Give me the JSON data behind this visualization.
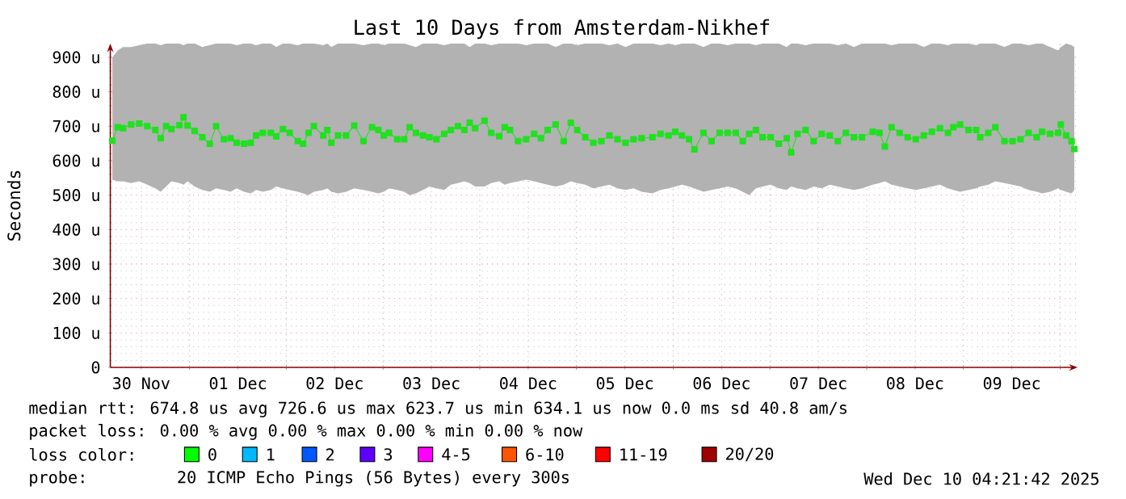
{
  "chart_data": {
    "type": "line",
    "title": "Last 10 Days from Amsterdam-Nikhef",
    "ylabel": "Seconds",
    "xlim": [
      "2025-11-30T04:20",
      "2025-12-10T04:20"
    ],
    "xticks": [
      {
        "value": "2025-11-30T12:00",
        "label": "30 Nov"
      },
      {
        "value": "2025-12-01T00:00",
        "label": null
      },
      {
        "value": "2025-12-01T12:00",
        "label": "01 Dec"
      },
      {
        "value": "2025-12-02T00:00",
        "label": null
      },
      {
        "value": "2025-12-02T12:00",
        "label": "02 Dec"
      },
      {
        "value": "2025-12-03T00:00",
        "label": null
      },
      {
        "value": "2025-12-03T12:00",
        "label": "03 Dec"
      },
      {
        "value": "2025-12-04T00:00",
        "label": null
      },
      {
        "value": "2025-12-04T12:00",
        "label": "04 Dec"
      },
      {
        "value": "2025-12-05T00:00",
        "label": null
      },
      {
        "value": "2025-12-05T12:00",
        "label": "05 Dec"
      },
      {
        "value": "2025-12-06T00:00",
        "label": null
      },
      {
        "value": "2025-12-06T12:00",
        "label": "06 Dec"
      },
      {
        "value": "2025-12-07T00:00",
        "label": null
      },
      {
        "value": "2025-12-07T12:00",
        "label": "07 Dec"
      },
      {
        "value": "2025-12-08T00:00",
        "label": null
      },
      {
        "value": "2025-12-08T12:00",
        "label": "08 Dec"
      },
      {
        "value": "2025-12-09T00:00",
        "label": null
      },
      {
        "value": "2025-12-09T12:00",
        "label": "09 Dec"
      },
      {
        "value": "2025-12-10T00:00",
        "label": null
      }
    ],
    "ylim": [
      0,
      940
    ],
    "yticks": [
      0,
      {
        "value": 100,
        "label": "100 u"
      },
      {
        "value": 200,
        "label": "200 u"
      },
      {
        "value": 300,
        "label": "300 u"
      },
      {
        "value": 400,
        "label": "400 u"
      },
      {
        "value": 500,
        "label": "500 u"
      },
      {
        "value": 600,
        "label": "600 u"
      },
      {
        "value": 700,
        "label": "700 u"
      },
      {
        "value": 800,
        "label": "800 u"
      },
      {
        "value": 900,
        "label": "900 u"
      }
    ],
    "grid": true,
    "marker": "square",
    "line_style": "solid",
    "x": [
      "2025-11-30T04:50",
      "2025-11-30T06:10",
      "2025-11-30T07:30",
      "2025-11-30T09:30",
      "2025-11-30T11:30",
      "2025-11-30T13:30",
      "2025-11-30T15:30",
      "2025-11-30T16:50",
      "2025-11-30T18:10",
      "2025-11-30T19:30",
      "2025-11-30T21:30",
      "2025-11-30T22:30",
      "2025-11-30T23:30",
      "2025-12-01T01:15",
      "2025-12-01T03:10",
      "2025-12-01T05:00",
      "2025-12-01T06:35",
      "2025-12-01T08:30",
      "2025-12-01T10:10",
      "2025-12-01T11:40",
      "2025-12-01T13:30",
      "2025-12-01T15:10",
      "2025-12-01T16:30",
      "2025-12-01T18:10",
      "2025-12-01T20:10",
      "2025-12-01T21:30",
      "2025-12-01T23:10",
      "2025-12-02T00:50",
      "2025-12-02T02:50",
      "2025-12-02T04:10",
      "2025-12-02T05:30",
      "2025-12-02T06:50",
      "2025-12-02T09:10",
      "2025-12-02T10:10",
      "2025-12-02T11:10",
      "2025-12-02T12:50",
      "2025-12-02T14:50",
      "2025-12-02T16:50",
      "2025-12-02T19:10",
      "2025-12-02T21:15",
      "2025-12-02T22:50",
      "2025-12-03T00:10",
      "2025-12-03T01:30",
      "2025-12-03T03:30",
      "2025-12-03T05:15",
      "2025-12-03T06:35",
      "2025-12-03T08:10",
      "2025-12-03T09:55",
      "2025-12-03T11:30",
      "2025-12-03T13:15",
      "2025-12-03T15:10",
      "2025-12-03T16:50",
      "2025-12-03T18:35",
      "2025-12-03T20:10",
      "2025-12-03T21:30",
      "2025-12-03T22:50",
      "2025-12-04T01:10",
      "2025-12-04T02:50",
      "2025-12-04T04:50",
      "2025-12-04T06:10",
      "2025-12-04T07:30",
      "2025-12-04T09:30",
      "2025-12-04T11:30",
      "2025-12-04T13:30",
      "2025-12-04T15:10",
      "2025-12-04T16:50",
      "2025-12-04T18:50",
      "2025-12-04T20:50",
      "2025-12-04T22:35",
      "2025-12-05T00:10",
      "2025-12-05T02:10",
      "2025-12-05T04:10",
      "2025-12-05T06:10",
      "2025-12-05T08:10",
      "2025-12-05T10:10",
      "2025-12-05T12:10",
      "2025-12-05T14:10",
      "2025-12-05T16:10",
      "2025-12-05T18:50",
      "2025-12-05T20:50",
      "2025-12-05T22:50",
      "2025-12-06T00:30",
      "2025-12-06T02:10",
      "2025-12-06T03:55",
      "2025-12-06T05:15",
      "2025-12-06T07:30",
      "2025-12-06T09:30",
      "2025-12-06T11:30",
      "2025-12-06T13:30",
      "2025-12-06T15:30",
      "2025-12-06T17:15",
      "2025-12-06T18:50",
      "2025-12-06T20:30",
      "2025-12-06T22:10",
      "2025-12-07T00:10",
      "2025-12-07T02:10",
      "2025-12-07T04:10",
      "2025-12-07T05:15",
      "2025-12-07T06:50",
      "2025-12-07T08:50",
      "2025-12-07T10:50",
      "2025-12-07T12:50",
      "2025-12-07T14:50",
      "2025-12-07T16:50",
      "2025-12-07T18:50",
      "2025-12-07T20:50",
      "2025-12-07T22:50",
      "2025-12-08T01:30",
      "2025-12-08T03:10",
      "2025-12-08T04:30",
      "2025-12-08T06:10",
      "2025-12-08T08:10",
      "2025-12-08T10:10",
      "2025-12-08T12:10",
      "2025-12-08T14:10",
      "2025-12-08T16:10",
      "2025-12-08T18:10",
      "2025-12-08T20:10",
      "2025-12-08T21:30",
      "2025-12-08T23:10",
      "2025-12-09T01:15",
      "2025-12-09T03:10",
      "2025-12-09T04:10",
      "2025-12-09T06:10",
      "2025-12-09T07:55",
      "2025-12-09T10:10",
      "2025-12-09T12:10",
      "2025-12-09T14:10",
      "2025-12-09T16:10",
      "2025-12-09T18:10",
      "2025-12-09T19:30",
      "2025-12-09T21:30",
      "2025-12-09T23:30",
      "2025-12-10T00:10",
      "2025-12-10T01:30",
      "2025-12-10T02:50",
      "2025-12-10T03:30"
    ],
    "series": [
      {
        "color": "#20e020",
        "values": [
          658,
          697,
          694,
          705,
          708,
          700,
          689,
          665,
          700,
          692,
          703,
          726,
          702,
          686,
          668,
          649,
          700,
          662,
          665,
          652,
          649,
          652,
          673,
          681,
          681,
          670,
          692,
          681,
          657,
          649,
          681,
          700,
          673,
          689,
          652,
          673,
          673,
          702,
          657,
          697,
          689,
          673,
          681,
          662,
          662,
          697,
          681,
          673,
          668,
          662,
          678,
          689,
          700,
          689,
          710,
          694,
          716,
          681,
          671,
          697,
          689,
          657,
          662,
          678,
          665,
          689,
          705,
          657,
          710,
          689,
          668,
          652,
          657,
          673,
          662,
          652,
          662,
          665,
          668,
          678,
          673,
          684,
          673,
          662,
          633,
          681,
          657,
          681,
          681,
          681,
          657,
          678,
          689,
          668,
          668,
          649,
          665,
          624,
          678,
          689,
          657,
          678,
          673,
          657,
          681,
          668,
          668,
          684,
          681,
          641,
          697,
          681,
          668,
          662,
          673,
          684,
          694,
          681,
          697,
          705,
          689,
          689,
          668,
          681,
          697,
          657,
          657,
          662,
          681,
          668,
          684,
          678,
          681,
          705,
          673,
          657,
          634
        ],
        "lower": [
          545,
          540,
          540,
          535,
          540,
          530,
          520,
          510,
          525,
          540,
          535,
          530,
          540,
          525,
          515,
          510,
          520,
          515,
          510,
          520,
          510,
          505,
          515,
          510,
          515,
          525,
          520,
          515,
          510,
          505,
          500,
          510,
          515,
          520,
          510,
          505,
          510,
          520,
          515,
          510,
          505,
          510,
          520,
          515,
          510,
          500,
          505,
          515,
          525,
          520,
          515,
          530,
          535,
          540,
          535,
          525,
          525,
          535,
          540,
          530,
          535,
          540,
          545,
          540,
          535,
          530,
          525,
          530,
          540,
          535,
          530,
          520,
          525,
          530,
          520,
          515,
          520,
          510,
          505,
          515,
          520,
          525,
          530,
          525,
          520,
          510,
          515,
          520,
          525,
          520,
          510,
          500,
          520,
          525,
          530,
          520,
          515,
          525,
          520,
          515,
          525,
          520,
          530,
          525,
          520,
          515,
          520,
          530,
          535,
          540,
          530,
          525,
          520,
          515,
          520,
          525,
          530,
          520,
          515,
          510,
          515,
          520,
          525,
          530,
          540,
          535,
          530,
          525,
          515,
          510,
          505,
          510,
          520,
          515,
          510,
          505,
          515
        ],
        "upper": [
          900,
          920,
          930,
          930,
          935,
          940,
          940,
          935,
          940,
          940,
          940,
          935,
          940,
          940,
          930,
          935,
          940,
          940,
          940,
          935,
          940,
          940,
          935,
          940,
          940,
          930,
          940,
          940,
          935,
          940,
          940,
          940,
          935,
          940,
          930,
          940,
          940,
          940,
          935,
          940,
          940,
          935,
          940,
          940,
          940,
          935,
          930,
          940,
          940,
          940,
          935,
          940,
          940,
          940,
          930,
          940,
          940,
          935,
          940,
          940,
          940,
          940,
          935,
          940,
          940,
          940,
          930,
          940,
          940,
          935,
          940,
          940,
          940,
          935,
          940,
          930,
          940,
          940,
          940,
          935,
          940,
          935,
          940,
          940,
          940,
          930,
          940,
          940,
          935,
          940,
          940,
          940,
          935,
          940,
          940,
          940,
          930,
          940,
          940,
          935,
          940,
          940,
          940,
          935,
          940,
          930,
          940,
          940,
          940,
          940,
          935,
          940,
          940,
          940,
          930,
          940,
          940,
          935,
          940,
          940,
          940,
          935,
          940,
          940,
          940,
          930,
          940,
          940,
          935,
          940,
          940,
          930,
          920,
          930,
          940,
          935,
          930
        ]
      }
    ],
    "annotations": [
      "median rtt: 674.8 us avg 726.6 us max 623.7 us min 634.1 us now 0.0 ms sd 40.8 am/s",
      "packet loss: 0.00 % avg 0.00 % max 0.00 % min 0.00 % now",
      "loss color:",
      "0",
      "1",
      "2",
      "3",
      "4-5",
      "6-10",
      "11-19",
      "20/20",
      "probe:",
      "20 ICMP Echo Pings (56 Bytes) every 300s",
      "Wed Dec 10 04:21:42 2025"
    ]
  }
}
